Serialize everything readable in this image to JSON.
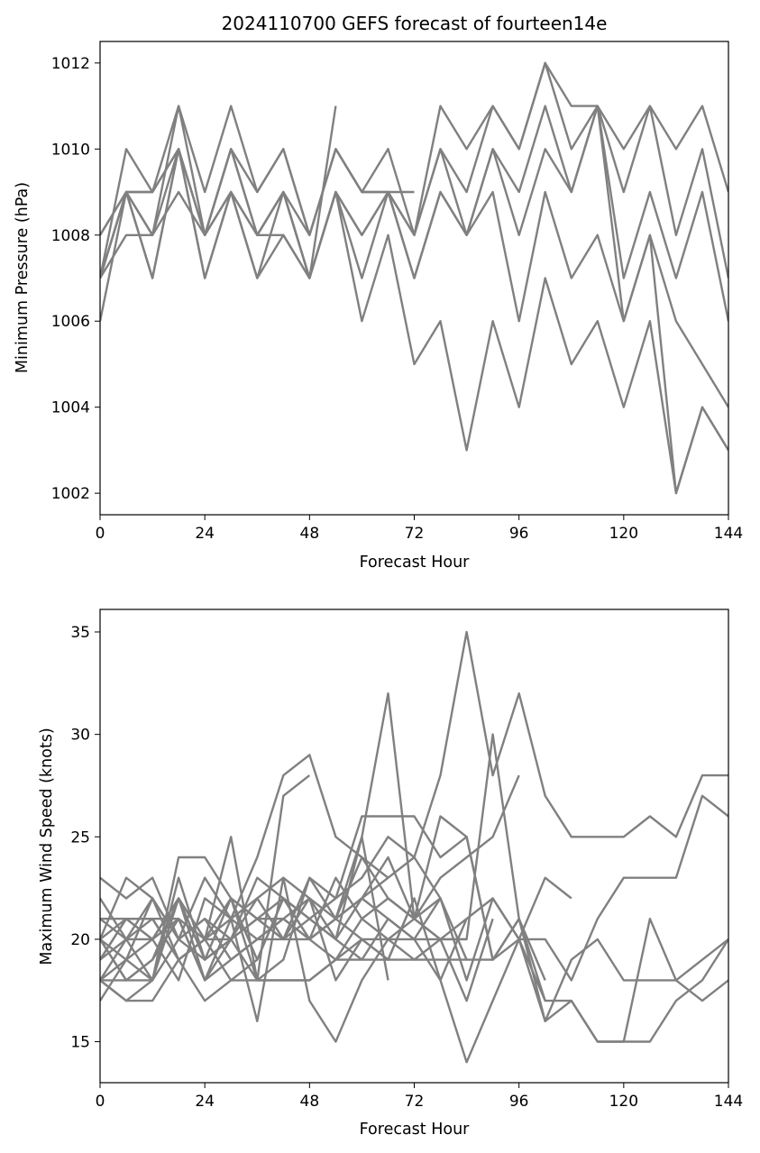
{
  "page_title": "2024110700 GEFS forecast of fourteen14e",
  "chart_data": [
    {
      "type": "line",
      "title": "2024110700 GEFS forecast of fourteen14e",
      "xlabel": "Forecast Hour",
      "ylabel": "Minimum Pressure (hPa)",
      "xlim": [
        0,
        144
      ],
      "ylim": [
        1001.5,
        1012.5
      ],
      "xticks": [
        0,
        24,
        48,
        72,
        96,
        120,
        144
      ],
      "yticks": [
        1002,
        1004,
        1006,
        1008,
        1010,
        1012
      ],
      "line_color": "#808080",
      "grid": false,
      "series": [
        {
          "x": [
            0,
            6,
            12,
            18,
            24,
            30,
            36,
            42,
            48,
            54,
            60,
            66,
            72,
            78,
            84,
            90,
            96,
            102,
            108,
            114,
            120,
            126,
            132,
            138,
            144
          ],
          "values": [
            1008,
            1009,
            1009,
            1011,
            1009,
            1011,
            1009,
            1010,
            1008,
            1010,
            1009,
            1009,
            1008,
            1011,
            1010,
            1011,
            1010,
            1012,
            1011,
            1011,
            1010,
            1011,
            1010,
            1011,
            1009
          ]
        },
        {
          "x": [
            0,
            6,
            12,
            18,
            24,
            30,
            36,
            42,
            48,
            54,
            60,
            66,
            72,
            78,
            84,
            90,
            96,
            102,
            108,
            114,
            120,
            126,
            132,
            138,
            144
          ],
          "values": [
            1007,
            1010,
            1009,
            1010,
            1008,
            1010,
            1009,
            1010,
            1008,
            1010,
            1009,
            1010,
            1008,
            1010,
            1009,
            1011,
            1010,
            1012,
            1010,
            1011,
            1009,
            1011,
            1008,
            1010,
            1007
          ]
        },
        {
          "x": [
            0,
            6,
            12,
            18,
            24,
            30,
            36,
            42,
            48,
            54,
            60,
            66,
            72,
            78,
            84,
            90,
            96,
            102,
            108,
            114,
            120,
            126,
            132,
            138,
            144
          ],
          "values": [
            1007,
            1009,
            1008,
            1011,
            1008,
            1010,
            1008,
            1009,
            1007,
            1009,
            1008,
            1009,
            1008,
            1010,
            1008,
            1010,
            1009,
            1011,
            1009,
            1011,
            1007,
            1009,
            1007,
            1009,
            1006
          ]
        },
        {
          "x": [
            0,
            6,
            12,
            18,
            24,
            30,
            36,
            42,
            48,
            54,
            60,
            66,
            72,
            78,
            84,
            90,
            96,
            102,
            108,
            114,
            120,
            126,
            132,
            138,
            144
          ],
          "values": [
            1006,
            1009,
            1007,
            1010,
            1007,
            1009,
            1007,
            1009,
            1007,
            1009,
            1008,
            1009,
            1007,
            1009,
            1008,
            1010,
            1008,
            1010,
            1009,
            1011,
            1006,
            1008,
            1006,
            1005,
            1004
          ]
        },
        {
          "x": [
            0,
            6,
            12,
            18,
            24,
            30,
            36,
            42,
            48,
            54,
            60,
            66,
            72,
            78,
            84,
            90,
            96,
            102,
            108,
            114,
            120,
            126,
            132,
            138,
            144
          ],
          "values": [
            1007,
            1008,
            1008,
            1009,
            1008,
            1009,
            1008,
            1008,
            1007,
            1009,
            1007,
            1009,
            1007,
            1009,
            1008,
            1009,
            1006,
            1009,
            1007,
            1008,
            1006,
            1008,
            1002,
            1004,
            1003
          ]
        },
        {
          "x": [
            0,
            6,
            12,
            18,
            24,
            30,
            36,
            42,
            48,
            54,
            60,
            66,
            72,
            78,
            84,
            90,
            96,
            102,
            108,
            114,
            120,
            126,
            132,
            138,
            144
          ],
          "values": [
            1007,
            1009,
            1007,
            1010,
            1008,
            1009,
            1008,
            1009,
            1007,
            1009,
            1006,
            1008,
            1005,
            1006,
            1003,
            1006,
            1004,
            1007,
            1005,
            1006,
            1004,
            1006,
            1002,
            1004,
            1003
          ]
        },
        {
          "x": [
            0,
            6,
            12,
            18,
            24,
            30,
            36,
            42,
            48,
            54,
            60,
            66,
            72
          ],
          "values": [
            1008,
            1009,
            1009,
            1010,
            1008,
            1010,
            1008,
            1009,
            1008,
            1010,
            1009,
            1009,
            1009
          ]
        },
        {
          "x": [
            0,
            6,
            12,
            18,
            24,
            30,
            36,
            42,
            48,
            54
          ],
          "values": [
            1007,
            1009,
            1008,
            1010,
            1007,
            1009,
            1007,
            1008,
            1007,
            1011
          ]
        }
      ]
    },
    {
      "type": "line",
      "title": "",
      "xlabel": "Forecast Hour",
      "ylabel": "Maximum Wind Speed (knots)",
      "xlim": [
        0,
        144
      ],
      "ylim": [
        13,
        36.1
      ],
      "xticks": [
        0,
        24,
        48,
        72,
        96,
        120,
        144
      ],
      "yticks": [
        15,
        20,
        25,
        30,
        35
      ],
      "line_color": "#808080",
      "grid": false,
      "series": [
        {
          "x": [
            0,
            6,
            12,
            18,
            24,
            30,
            36,
            42,
            48,
            54,
            60,
            66,
            72,
            78,
            84,
            90,
            96,
            102,
            108,
            114,
            120,
            126,
            132,
            138,
            144
          ],
          "values": [
            20,
            19,
            22,
            20,
            21,
            20,
            22,
            20,
            21,
            22,
            23,
            25,
            24,
            28,
            35,
            28,
            32,
            27,
            25,
            25,
            25,
            26,
            25,
            28,
            28
          ]
        },
        {
          "x": [
            0,
            6,
            12,
            18,
            24,
            30,
            36,
            42,
            48,
            54,
            60,
            66,
            72,
            78,
            84,
            90,
            96,
            102,
            108,
            114,
            120,
            126,
            132,
            138,
            144
          ],
          "values": [
            19,
            20,
            20,
            22,
            20,
            22,
            21,
            20,
            22,
            21,
            24,
            23,
            24,
            22,
            18,
            22,
            20,
            17,
            17,
            15,
            15,
            15,
            17,
            18,
            20
          ]
        },
        {
          "x": [
            0,
            6,
            12,
            18,
            24,
            30,
            36,
            42,
            48,
            54,
            60,
            66,
            72,
            78,
            84,
            90,
            96,
            102,
            108,
            114,
            120,
            126,
            132,
            138,
            144
          ],
          "values": [
            22,
            20,
            21,
            19,
            20,
            18,
            19,
            22,
            21,
            20,
            22,
            21,
            20,
            22,
            19,
            19,
            21,
            16,
            17,
            15,
            15,
            21,
            18,
            17,
            18
          ]
        },
        {
          "x": [
            0,
            6,
            12,
            18,
            24,
            30,
            36,
            42,
            48,
            54,
            60,
            66,
            72,
            78,
            84,
            90,
            96,
            102,
            108,
            114,
            120,
            126,
            132,
            138,
            144
          ],
          "values": [
            18,
            17,
            18,
            20,
            21,
            19,
            20,
            21,
            22,
            20,
            19,
            21,
            20,
            18,
            14,
            17,
            20,
            16,
            19,
            20,
            18,
            18,
            18,
            19,
            20
          ]
        },
        {
          "x": [
            0,
            6,
            12,
            18,
            24,
            30,
            36,
            42,
            48,
            54,
            60,
            66,
            72,
            78,
            84,
            90,
            96,
            102,
            108,
            114,
            120,
            126,
            132,
            138,
            144
          ],
          "values": [
            19,
            21,
            20,
            22,
            18,
            19,
            20,
            21,
            20,
            19,
            21,
            22,
            21,
            20,
            21,
            22,
            20,
            20,
            18,
            21,
            23,
            23,
            23,
            27,
            26
          ]
        },
        {
          "x": [
            0,
            6,
            12,
            18,
            24,
            30,
            36,
            42,
            48,
            54,
            60,
            66,
            72,
            78,
            84,
            90,
            96,
            102,
            108
          ],
          "values": [
            20,
            21,
            21,
            19,
            20,
            22,
            21,
            20,
            23,
            22,
            26,
            26,
            26,
            24,
            25,
            19,
            20,
            23,
            22
          ]
        },
        {
          "x": [
            0,
            6,
            12,
            18,
            24,
            30,
            36,
            42,
            48,
            54,
            60,
            66,
            72,
            78,
            84,
            90,
            96,
            102
          ],
          "values": [
            21,
            20,
            22,
            20,
            19,
            20,
            23,
            22,
            20,
            21,
            22,
            24,
            21,
            20,
            20,
            30,
            21,
            18
          ]
        },
        {
          "x": [
            0,
            6,
            12,
            18,
            24,
            30,
            36,
            42,
            48,
            54,
            60,
            66,
            72,
            78,
            84,
            90,
            96,
            102
          ],
          "values": [
            18,
            19,
            18,
            22,
            19,
            20,
            21,
            22,
            20,
            23,
            21,
            20,
            21,
            26,
            25,
            19,
            21,
            17
          ]
        },
        {
          "x": [
            0,
            6,
            12,
            18,
            24,
            30,
            36,
            42,
            48,
            54,
            60,
            66,
            72,
            78,
            84,
            90,
            96
          ],
          "values": [
            20,
            18,
            19,
            21,
            18,
            21,
            24,
            28,
            29,
            25,
            24,
            22,
            21,
            23,
            24,
            25,
            28
          ]
        },
        {
          "x": [
            0,
            6,
            12,
            18,
            24,
            30,
            36,
            42,
            48,
            54,
            60,
            66,
            72,
            78,
            84,
            90
          ],
          "values": [
            23,
            22,
            23,
            20,
            23,
            21,
            16,
            23,
            17,
            15,
            18,
            20,
            20,
            20,
            17,
            21
          ]
        },
        {
          "x": [
            0,
            6,
            12,
            18,
            24,
            30,
            36,
            42,
            48,
            54,
            60,
            66,
            72,
            78,
            84
          ],
          "values": [
            19,
            21,
            20,
            18,
            22,
            21,
            22,
            23,
            22,
            18,
            20,
            19,
            22,
            18,
            21
          ]
        },
        {
          "x": [
            0,
            6,
            12,
            18,
            24,
            30,
            36,
            42,
            48,
            54,
            60,
            66,
            72,
            78,
            84
          ],
          "values": [
            21,
            21,
            21,
            21,
            20,
            21,
            20,
            20,
            20,
            21,
            20,
            20,
            19,
            20,
            20
          ]
        },
        {
          "x": [
            0,
            6,
            12,
            18,
            24,
            30,
            36,
            42,
            48,
            54,
            60,
            66,
            72,
            78,
            84
          ],
          "values": [
            17,
            19,
            20,
            21,
            18,
            20,
            18,
            18,
            18,
            19,
            19,
            19,
            19,
            19,
            19
          ]
        },
        {
          "x": [
            0,
            6,
            12,
            18,
            24,
            30,
            36,
            42,
            48,
            54,
            60,
            66,
            72,
            78
          ],
          "values": [
            20,
            23,
            22,
            19,
            20,
            20,
            21,
            21,
            20,
            21,
            25,
            32,
            21,
            22
          ]
        },
        {
          "x": [
            0,
            6,
            12,
            18,
            24,
            30,
            36,
            42,
            48,
            54,
            60,
            66,
            72
          ],
          "values": [
            18,
            17,
            17,
            19,
            17,
            18,
            18,
            18,
            18,
            19,
            20,
            19,
            22
          ]
        },
        {
          "x": [
            0,
            6,
            12,
            18,
            24,
            30,
            36,
            42,
            48,
            54,
            60,
            66
          ],
          "values": [
            18,
            20,
            18,
            24,
            24,
            22,
            19,
            22,
            21,
            20,
            25,
            18
          ]
        },
        {
          "x": [
            0,
            6,
            12,
            18,
            24,
            30,
            36,
            42,
            48,
            54,
            60,
            66
          ],
          "values": [
            20,
            18,
            19,
            22,
            20,
            25,
            18,
            19,
            23,
            21,
            22,
            23
          ]
        },
        {
          "x": [
            0,
            6,
            12,
            18,
            24,
            30,
            36,
            42,
            48
          ],
          "values": [
            18,
            18,
            18,
            23,
            19,
            22,
            18,
            27,
            28
          ]
        }
      ]
    }
  ]
}
